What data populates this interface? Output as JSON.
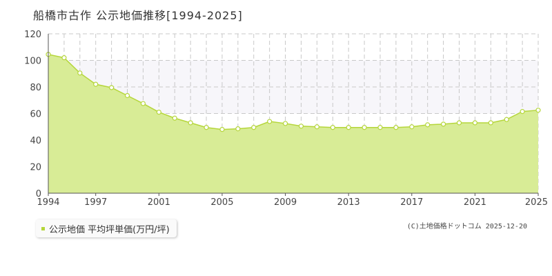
{
  "title": "船橋市古作 公示地価推移[1994-2025]",
  "legend": {
    "label": "公示地価 平均坪単価(万円/坪)"
  },
  "copyright": "(C)土地価格ドットコム 2025-12-20",
  "colors": {
    "fill": "#d8ec96",
    "line": "#b5d63a",
    "marker_fill": "#ffffff",
    "band": "#f7f6fa",
    "grid": "#c8c8c8"
  },
  "chart_data": {
    "type": "area",
    "title": "",
    "xlabel": "",
    "ylabel": "",
    "x_tick_labels": [
      "1994",
      "1997",
      "2001",
      "2005",
      "2009",
      "2013",
      "2017",
      "2021",
      "2025"
    ],
    "y_tick_labels": [
      "0",
      "20",
      "40",
      "60",
      "80",
      "100",
      "120"
    ],
    "xlim": [
      1994,
      2025
    ],
    "ylim": [
      0,
      120
    ],
    "grid": true,
    "legend_position": "bottom-left",
    "series": [
      {
        "name": "公示地価 平均坪単価(万円/坪)",
        "x": [
          1994,
          1995,
          1996,
          1997,
          1998,
          1999,
          2000,
          2001,
          2002,
          2003,
          2004,
          2005,
          2006,
          2007,
          2008,
          2009,
          2010,
          2011,
          2012,
          2013,
          2014,
          2015,
          2016,
          2017,
          2018,
          2019,
          2020,
          2021,
          2022,
          2023,
          2024,
          2025
        ],
        "values": [
          104.5,
          102,
          90.5,
          82,
          79.5,
          73.5,
          67.5,
          61,
          56.5,
          53,
          49.5,
          48,
          48.5,
          49.5,
          54,
          52.5,
          50.5,
          50,
          49.5,
          49.5,
          49.5,
          49.5,
          49.5,
          50,
          51.5,
          52,
          53,
          53,
          53,
          55.5,
          61.5,
          62.5
        ]
      }
    ]
  }
}
